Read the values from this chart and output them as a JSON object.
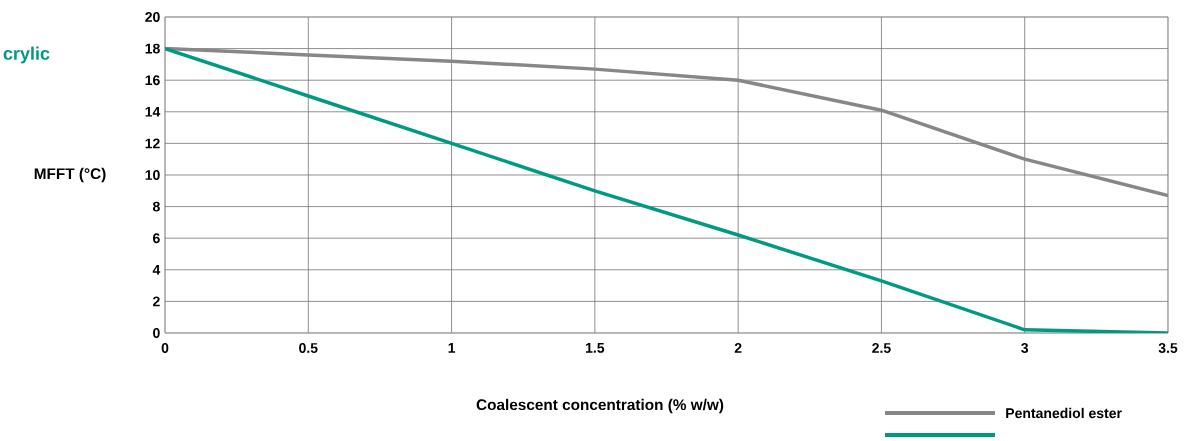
{
  "chart_data": {
    "type": "line",
    "title": "crylic",
    "xlabel": "Coalescent concentration (% w/w)",
    "ylabel": "MFFT (°C)",
    "x": [
      0,
      0.5,
      1,
      1.5,
      2,
      2.5,
      3,
      3.5
    ],
    "series": [
      {
        "name": "Pentanediol ester",
        "color": "#878787",
        "values": [
          18,
          17.6,
          17.2,
          16.7,
          16,
          14.1,
          11,
          8.7
        ]
      },
      {
        "color": "#009a82",
        "values": [
          18,
          15,
          12,
          9,
          6.2,
          3.3,
          0.2,
          0
        ]
      }
    ],
    "xlim": [
      0,
      3.5
    ],
    "xticks": [
      0,
      0.5,
      1,
      1.5,
      2,
      2.5,
      3,
      3.5
    ],
    "ylim": [
      0,
      20
    ],
    "yticks": [
      0,
      2,
      4,
      6,
      8,
      10,
      12,
      14,
      16,
      18,
      20
    ],
    "grid": true,
    "legend": "bottom right",
    "marker": "none",
    "line_style": "solid"
  }
}
